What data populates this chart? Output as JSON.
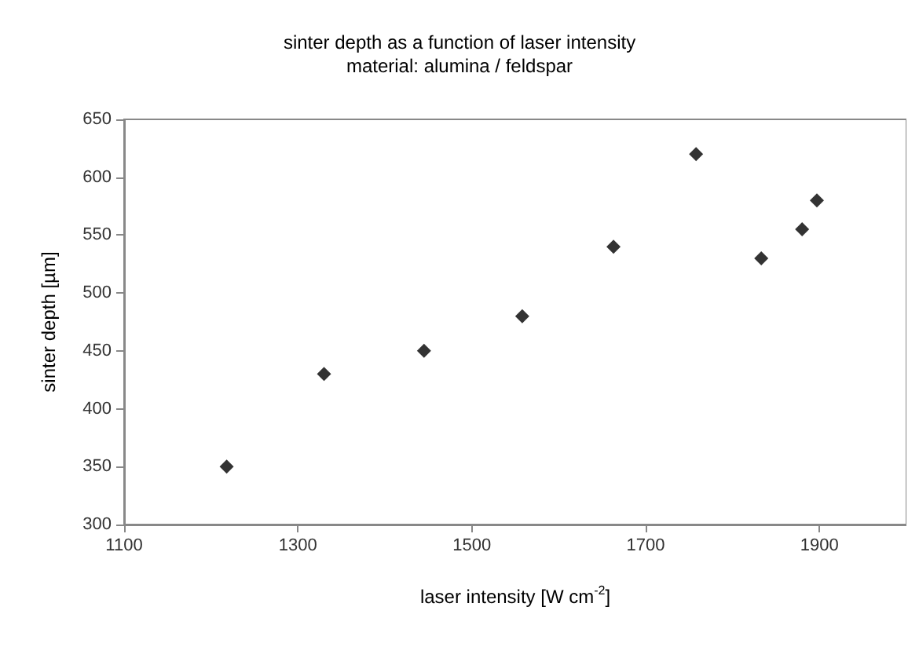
{
  "chart_data": {
    "type": "scatter",
    "title": "sinter depth as a function of laser intensity",
    "subtitle": "material: alumina / feldspar",
    "xlabel": "laser intensity [W cm$^{-2}$]",
    "ylabel": "sinter depth [µm]",
    "x": [
      1218,
      1330,
      1445,
      1558,
      1663,
      1758,
      1833,
      1880,
      1897
    ],
    "values": [
      350,
      430,
      450,
      480,
      540,
      620,
      530,
      555,
      580
    ],
    "color": "#000000",
    "marker": "diamond",
    "xlim": [
      1100,
      2000
    ],
    "xticks": [
      1100,
      1300,
      1500,
      1700,
      1900
    ],
    "ylim": [
      300,
      650
    ],
    "yticks": [
      300,
      350,
      400,
      450,
      500,
      550,
      600,
      650
    ],
    "grid": false
  }
}
